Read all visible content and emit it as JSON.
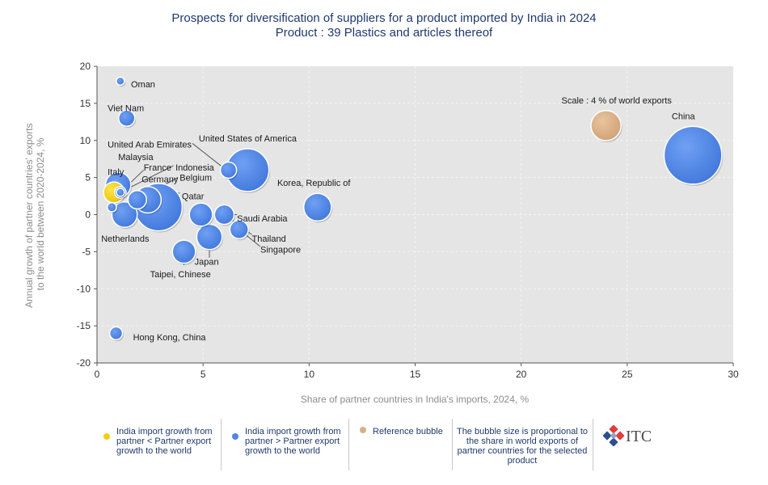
{
  "title": "Prospects for diversification of suppliers for a product imported by India in 2024",
  "subtitle": "Product : 39 Plastics and articles thereof",
  "chart_data": {
    "type": "scatter",
    "bubble": true,
    "xlabel": "Share of partner countries in India's imports, 2024, %",
    "ylabel_lines": [
      "Annual growth of partner countries' exports",
      "to the world between 2020-2024, %"
    ],
    "xlim": [
      0,
      30
    ],
    "ylim": [
      -20,
      20
    ],
    "xticks": [
      0,
      5,
      10,
      15,
      20,
      25,
      30
    ],
    "yticks": [
      -20,
      -15,
      -10,
      -5,
      0,
      5,
      10,
      15,
      20
    ],
    "grid": true,
    "colors": {
      "below": "#f2cd12",
      "above": "#4f86e6",
      "reference": "#d8b088",
      "plot_bg": "#e5e5e5"
    },
    "points": [
      {
        "name": "China",
        "x": 28.1,
        "y": 8,
        "size": 35.7,
        "group": "above"
      },
      {
        "name": "United States of America",
        "x": 7.1,
        "y": 6,
        "size": 26.4,
        "group": "above"
      },
      {
        "name": "Korea, Republic of",
        "x": 10.4,
        "y": 1,
        "size": 17.1,
        "group": "above"
      },
      {
        "name": "Japan",
        "x": 5.3,
        "y": -3,
        "size": 15.7,
        "group": "above"
      },
      {
        "name": "Taipei, Chinese",
        "x": 4.1,
        "y": -5,
        "size": 14.3,
        "group": "above"
      },
      {
        "name": "Saudi Arabia",
        "x": 4.9,
        "y": 0,
        "size": 14.3,
        "group": "above"
      },
      {
        "name": "Singapore",
        "x": 6.0,
        "y": 0,
        "size": 12.1,
        "group": "above"
      },
      {
        "name": "Thailand",
        "x": 6.7,
        "y": -2,
        "size": 11.4,
        "group": "above"
      },
      {
        "name": "Qatar",
        "x": 2.9,
        "y": 1,
        "size": 29.3,
        "group": "above"
      },
      {
        "name": "Belgium",
        "x": 2.4,
        "y": 2,
        "size": 16.4,
        "group": "above"
      },
      {
        "name": "Germany",
        "x": 1.9,
        "y": 2,
        "size": 11.4,
        "group": "above"
      },
      {
        "name": "Netherlands",
        "x": 1.3,
        "y": 0,
        "size": 15.7,
        "group": "above"
      },
      {
        "name": "Italy",
        "x": 1.0,
        "y": 4,
        "size": 15.7,
        "group": "above"
      },
      {
        "name": "Malaysia",
        "x": 1.1,
        "y": 3,
        "size": 7.1,
        "group": "above"
      },
      {
        "name": "France",
        "x": 0.8,
        "y": 3,
        "size": 12.9,
        "group": "below"
      },
      {
        "name": "Indonesia",
        "x": 1.1,
        "y": 3,
        "size": 5.0,
        "group": "above"
      },
      {
        "name": "United Arab Emirates",
        "x": 6.2,
        "y": 6,
        "size": 10.0,
        "group": "above"
      },
      {
        "name": "Viet Nam",
        "x": 1.4,
        "y": 13,
        "size": 10.0,
        "group": "above"
      },
      {
        "name": "Oman",
        "x": 1.1,
        "y": 18,
        "size": 5.0,
        "group": "above"
      },
      {
        "name": "Hong Kong, China",
        "x": 0.9,
        "y": -16,
        "size": 7.9,
        "group": "above"
      },
      {
        "name": "",
        "x": 0.7,
        "y": 1,
        "size": 5.7,
        "group": "above"
      },
      {
        "name": "",
        "x": 24.0,
        "y": 12,
        "size": 18.6,
        "group": "reference"
      }
    ],
    "annotations": [
      {
        "text": "China",
        "x": 27.1,
        "y": 13.3,
        "anchor": "start"
      },
      {
        "text": "United States of America",
        "x": 4.8,
        "y": 10.3,
        "anchor": "start"
      },
      {
        "text": "Korea, Republic of",
        "x": 8.5,
        "y": 4.3,
        "anchor": "start"
      },
      {
        "text": "Japan",
        "x": 4.6,
        "y": -6.3,
        "anchor": "start"
      },
      {
        "text": "Taipei, Chinese",
        "x": 2.5,
        "y": -8.0,
        "anchor": "start"
      },
      {
        "text": "Saudi Arabia",
        "x": 6.6,
        "y": -0.5,
        "anchor": "start"
      },
      {
        "text": "Singapore",
        "x": 7.7,
        "y": -4.7,
        "anchor": "start"
      },
      {
        "text": "Thailand",
        "x": 7.3,
        "y": -3.2,
        "anchor": "start"
      },
      {
        "text": "Qatar",
        "x": 4.0,
        "y": 2.5,
        "anchor": "start"
      },
      {
        "text": "Belgium",
        "x": 3.9,
        "y": 5.0,
        "anchor": "start"
      },
      {
        "text": "Indonesia",
        "x": 3.7,
        "y": 6.4,
        "anchor": "start"
      },
      {
        "text": "Germany",
        "x": 2.1,
        "y": 4.8,
        "anchor": "start"
      },
      {
        "text": "France",
        "x": 2.2,
        "y": 6.4,
        "anchor": "start"
      },
      {
        "text": "Malaysia",
        "x": 1.0,
        "y": 7.8,
        "anchor": "start"
      },
      {
        "text": "Italy",
        "x": 0.5,
        "y": 5.8,
        "anchor": "start"
      },
      {
        "text": "United Arab Emirates",
        "x": 0.5,
        "y": 9.5,
        "anchor": "start"
      },
      {
        "text": "Netherlands",
        "x": 0.2,
        "y": -3.2,
        "anchor": "start"
      },
      {
        "text": "Viet Nam",
        "x": 0.5,
        "y": 14.4,
        "anchor": "start"
      },
      {
        "text": "Oman",
        "x": 1.6,
        "y": 17.6,
        "anchor": "start"
      },
      {
        "text": "Hong Kong, China",
        "x": 1.7,
        "y": -16.5,
        "anchor": "start"
      },
      {
        "text": "Scale : 4 % of world exports",
        "x": 21.9,
        "y": 15.4,
        "anchor": "start"
      }
    ],
    "leader_lines": [
      {
        "x1": 6.1,
        "y1": 6.0,
        "x2": 4.5,
        "y2": 9.6
      },
      {
        "x1": 1.1,
        "y1": 3.0,
        "x2": 3.6,
        "y2": 6.6
      },
      {
        "x1": 1.1,
        "y1": 3.0,
        "x2": 2.2,
        "y2": 6.0
      },
      {
        "x1": 1.9,
        "y1": 2.0,
        "x2": 3.8,
        "y2": 5.0
      },
      {
        "x1": 2.9,
        "y1": 2.9,
        "x2": 3.9,
        "y2": 2.9
      },
      {
        "x1": 1.3,
        "y1": 0.3,
        "x2": 1.3,
        "y2": -1.6
      },
      {
        "x1": 1.1,
        "y1": 4.0,
        "x2": 1.1,
        "y2": 5.0
      },
      {
        "x1": 5.3,
        "y1": -3.0,
        "x2": 5.3,
        "y2": -5.8
      },
      {
        "x1": 4.1,
        "y1": -5.0,
        "x2": 4.1,
        "y2": -6.8
      },
      {
        "x1": 6.0,
        "y1": 0.0,
        "x2": 6.6,
        "y2": 0.0
      },
      {
        "x1": 6.7,
        "y1": -2.0,
        "x2": 7.7,
        "y2": -4.3
      },
      {
        "x1": 6.0,
        "y1": 0.0,
        "x2": 7.3,
        "y2": -2.7
      }
    ]
  },
  "legend": {
    "below_label": "India import growth from partner < Partner export growth to the world",
    "above_label": "India import growth from partner > Partner export growth to the world",
    "reference_label": "Reference bubble",
    "note": "The bubble size is proportional to the share in world exports of partner countries for the selected product",
    "logo_text": "ITC"
  }
}
